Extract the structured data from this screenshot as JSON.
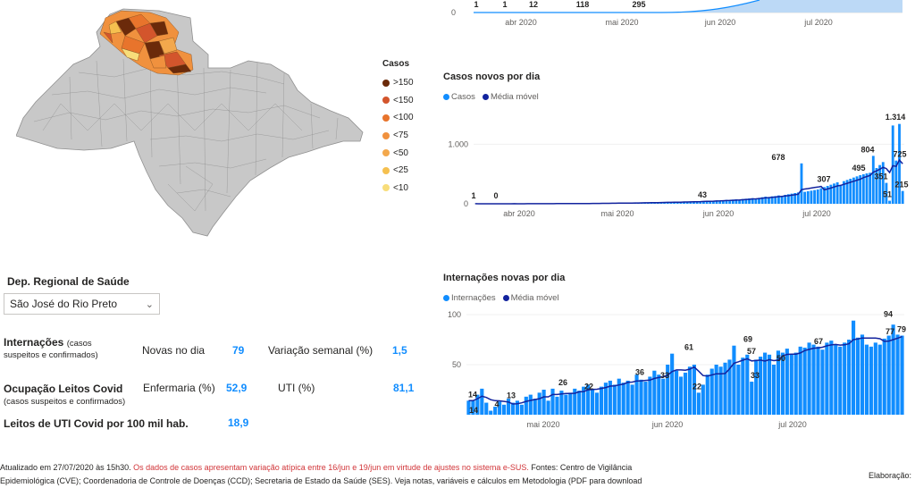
{
  "map": {
    "legend_title": "Casos",
    "legend": [
      {
        "label": ">150",
        "color": "#6b2a0a"
      },
      {
        "label": "<150",
        "color": "#d3552c"
      },
      {
        "label": "<100",
        "color": "#e8742c"
      },
      {
        "label": "<75",
        "color": "#f0913e"
      },
      {
        "label": "<50",
        "color": "#f3a84c"
      },
      {
        "label": "<25",
        "color": "#f5c04f"
      },
      {
        "label": "<10",
        "color": "#f8dd7a"
      }
    ]
  },
  "cumulative_chart": {
    "bar_labels": [
      "1",
      "1",
      "12",
      "118",
      "295"
    ],
    "x_ticks": [
      "abr 2020",
      "mai 2020",
      "jun 2020",
      "jul 2020"
    ],
    "y_ticks": [
      "0"
    ]
  },
  "cases_chart": {
    "title": "Casos novos por dia",
    "legend": [
      {
        "label": "Casos",
        "color": "#118dff"
      },
      {
        "label": "Média móvel",
        "color": "#12239e"
      }
    ]
  },
  "hosp_chart": {
    "title": "Internações novas por dia",
    "legend": [
      {
        "label": "Internações",
        "color": "#118dff"
      },
      {
        "label": "Média móvel",
        "color": "#12239e"
      }
    ]
  },
  "chart_data": [
    {
      "type": "bar",
      "title": "Casos novos por dia",
      "x_ticks": [
        "abr 2020",
        "mai 2020",
        "jun 2020",
        "jul 2020"
      ],
      "y_ticks": [
        0,
        1000
      ],
      "y_tick_labels": [
        "0",
        "1.000"
      ],
      "ylim": [
        0,
        1500
      ],
      "series": [
        {
          "name": "Casos",
          "values": [
            1,
            0,
            0,
            1,
            0,
            0,
            2,
            0,
            1,
            0,
            1,
            0,
            2,
            1,
            0,
            1,
            2,
            1,
            0,
            3,
            2,
            1,
            2,
            3,
            2,
            4,
            3,
            2,
            5,
            4,
            3,
            6,
            5,
            4,
            7,
            6,
            8,
            7,
            9,
            8,
            10,
            9,
            12,
            11,
            10,
            14,
            13,
            12,
            16,
            15,
            18,
            17,
            20,
            19,
            22,
            21,
            24,
            23,
            26,
            28,
            25,
            30,
            32,
            29,
            35,
            33,
            38,
            36,
            43,
            40,
            45,
            48,
            44,
            52,
            55,
            50,
            60,
            65,
            58,
            70,
            75,
            68,
            80,
            85,
            90,
            95,
            88,
            100,
            110,
            120,
            115,
            125,
            130,
            140,
            135,
            150,
            160,
            170,
            180,
            190,
            678,
            200,
            210,
            220,
            230,
            240,
            260,
            280,
            300,
            320,
            340,
            360,
            307,
            380,
            400,
            420,
            440,
            460,
            480,
            495,
            510,
            520,
            804,
            600,
            650,
            700,
            351,
            51,
            1314,
            725,
            1340,
            215
          ]
        },
        {
          "name": "Média móvel"
        }
      ],
      "data_labels": [
        {
          "text": "1",
          "value": 1
        },
        {
          "text": "0",
          "value": 0
        },
        {
          "text": "43",
          "value": 43
        },
        {
          "text": "678",
          "value": 678
        },
        {
          "text": "307",
          "value": 307
        },
        {
          "text": "495",
          "value": 495
        },
        {
          "text": "804",
          "value": 804
        },
        {
          "text": "351",
          "value": 351
        },
        {
          "text": "51",
          "value": 51
        },
        {
          "text": "1.314",
          "value": 1314
        },
        {
          "text": "725",
          "value": 725
        },
        {
          "text": "215",
          "value": 215
        }
      ]
    },
    {
      "type": "bar",
      "title": "Internações novas por dia",
      "x_ticks": [
        "mai 2020",
        "jun 2020",
        "jul 2020"
      ],
      "y_ticks": [
        50,
        100
      ],
      "y_tick_labels": [
        "50",
        "100"
      ],
      "ylim": [
        0,
        100
      ],
      "series": [
        {
          "name": "Internações",
          "values": [
            14,
            14,
            20,
            26,
            12,
            4,
            8,
            13,
            10,
            16,
            12,
            14,
            10,
            18,
            20,
            16,
            22,
            25,
            14,
            26,
            18,
            24,
            20,
            22,
            26,
            24,
            28,
            30,
            26,
            22,
            28,
            32,
            34,
            30,
            36,
            32,
            34,
            30,
            40,
            35,
            33,
            38,
            44,
            40,
            36,
            50,
            61,
            44,
            38,
            42,
            48,
            50,
            22,
            30,
            40,
            46,
            50,
            48,
            52,
            55,
            69,
            50,
            57,
            60,
            33,
            55,
            58,
            62,
            60,
            50,
            64,
            62,
            66,
            60,
            62,
            68,
            67,
            72,
            70,
            68,
            65,
            72,
            74,
            70,
            68,
            72,
            75,
            94,
            77,
            80,
            70,
            68,
            72,
            70,
            76,
            79,
            90,
            80,
            79
          ]
        },
        {
          "name": "Média móvel"
        }
      ],
      "data_labels": [
        {
          "text": "14",
          "value": 14
        },
        {
          "text": "14",
          "value": 14
        },
        {
          "text": "4",
          "value": 4
        },
        {
          "text": "13",
          "value": 13
        },
        {
          "text": "26",
          "value": 26
        },
        {
          "text": "22",
          "value": 22
        },
        {
          "text": "36",
          "value": 36
        },
        {
          "text": "33",
          "value": 33
        },
        {
          "text": "61",
          "value": 61
        },
        {
          "text": "22",
          "value": 22
        },
        {
          "text": "69",
          "value": 69
        },
        {
          "text": "57",
          "value": 57
        },
        {
          "text": "33",
          "value": 33
        },
        {
          "text": "50",
          "value": 50
        },
        {
          "text": "67",
          "value": 67
        },
        {
          "text": "94",
          "value": 94
        },
        {
          "text": "77",
          "value": 77
        },
        {
          "text": "79",
          "value": 79
        }
      ]
    }
  ],
  "filter": {
    "label": "Dep. Regional de Saúde",
    "selected": "São José do Rio Preto"
  },
  "kpis": {
    "internacoes_label": "Internações",
    "internacoes_suffix": "(casos",
    "internacoes_sub": "suspeitos e confirmados)",
    "novas_label": "Novas no dia",
    "novas_value": "79",
    "variacao_label": "Variação semanal (%)",
    "variacao_value": "1,5",
    "ocupacao_label": "Ocupação Leitos Covid",
    "ocupacao_sub": "(casos suspeitos e confirmados)",
    "enfermaria_label": "Enfermaria (%)",
    "enfermaria_value": "52,9",
    "uti_label": "UTI (%)",
    "uti_value": "81,1",
    "leitos_label": "Leitos de UTI Covid por 100 mil hab.",
    "leitos_value": "18,9"
  },
  "footer": {
    "line1_a": "Atualizado em 27/07/2020 às 15h30.",
    "line1_warn": "Os dados de casos apresentam variação atípica entre 16/jun e 19/jun em virtude de ajustes no sistema e-SUS.",
    "line1_b": "Fontes: Centro de Vigilância",
    "line2": "Epidemiológica (CVE); Coordenadoria de Controle de Doenças (CCD); Secretaria de Estado da Saúde (SES). Veja notas, variáveis e cálculos em Metodologia (PDF para download",
    "elaboracao": "Elaboração:"
  }
}
